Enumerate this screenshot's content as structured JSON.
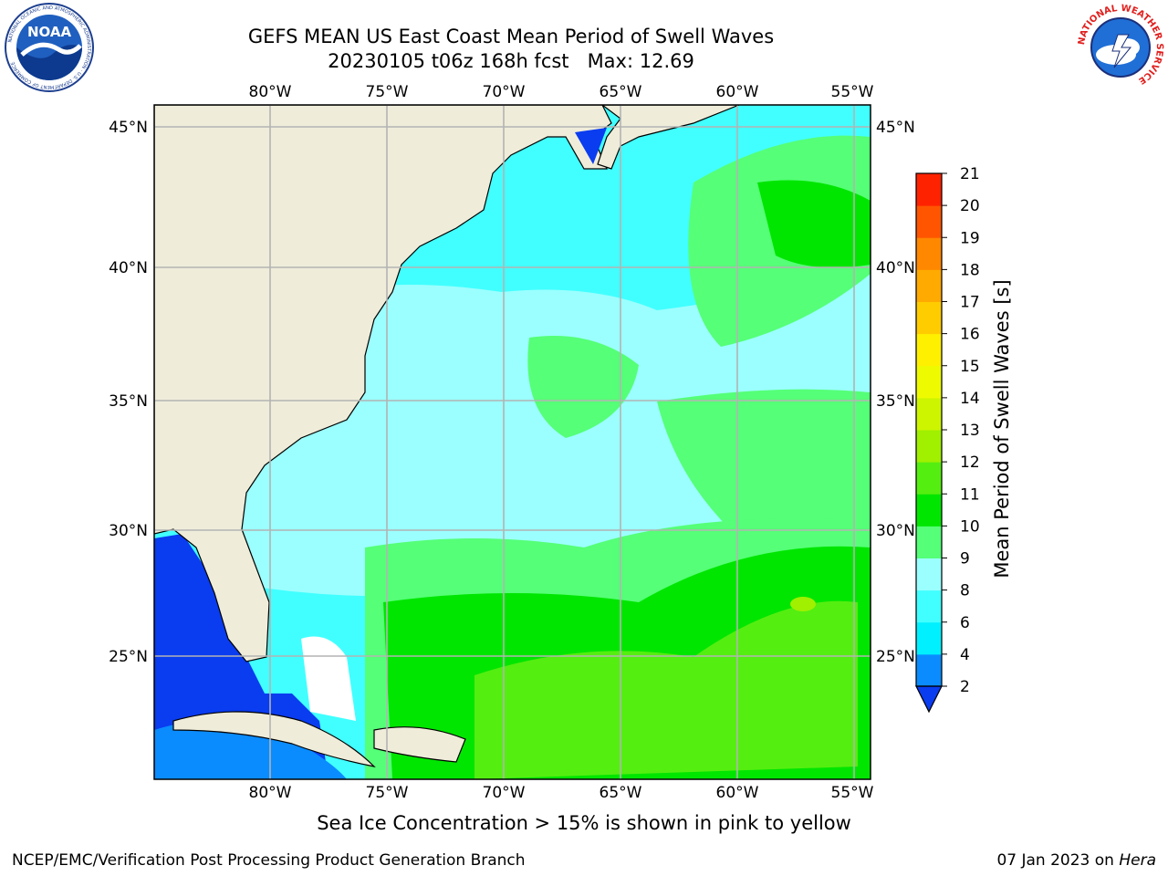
{
  "header": {
    "title_line1": "GEFS MEAN US East Coast Mean Period of Swell Waves",
    "title_line2": "20230105 t06z 168h fcst   Max: 12.69"
  },
  "map": {
    "lon_labels": [
      "80°W",
      "75°W",
      "70°W",
      "65°W",
      "60°W",
      "55°W"
    ],
    "lat_labels": [
      "45°N",
      "40°N",
      "35°N",
      "30°N",
      "25°N"
    ],
    "land_color": "#efedda",
    "no_data_color": "#ffffff"
  },
  "colorbar": {
    "title": "Mean Period of Swell Waves [s]",
    "ticks": [
      "2",
      "4",
      "6",
      "8",
      "9",
      "10",
      "11",
      "12",
      "13",
      "14",
      "15",
      "16",
      "17",
      "18",
      "19",
      "20",
      "21"
    ],
    "colors": [
      "#0a3cf0",
      "#0a8cff",
      "#00f0ff",
      "#41ffff",
      "#9bffff",
      "#55ff77",
      "#00e600",
      "#55ee11",
      "#a0f000",
      "#cdf500",
      "#eefb00",
      "#fff000",
      "#ffcc00",
      "#ffaa00",
      "#ff8800",
      "#ff5500",
      "#ff2200",
      "#ff0000"
    ],
    "min": 2,
    "max": 21,
    "extend": "min"
  },
  "logos": {
    "noaa_text": "NOAA",
    "noaa_ring_text": "NATIONAL OCEANIC AND ATMOSPHERIC ADMINISTRATION · U.S. DEPARTMENT OF COMMERCE",
    "nws_ring_text": "NATIONAL WEATHER SERVICE"
  },
  "footer": {
    "note": "Sea Ice Concentration > 15% is shown in pink to yellow",
    "credit": "NCEP/EMC/Verification Post Processing Product Generation Branch",
    "date": "07 Jan 2023 on",
    "machine": "Hera"
  }
}
